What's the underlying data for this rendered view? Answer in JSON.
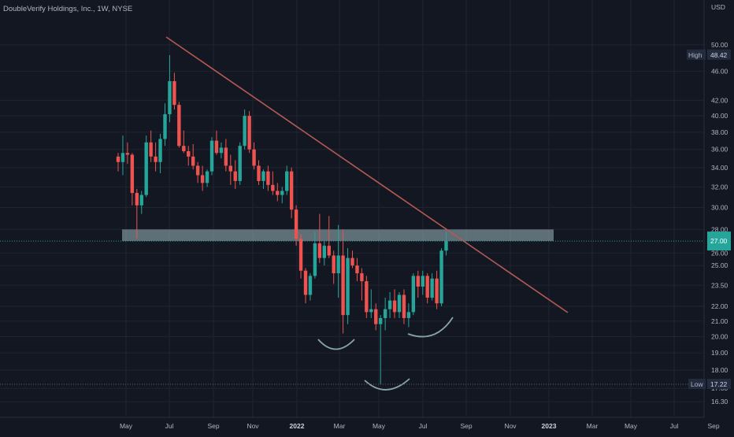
{
  "header": {
    "title": "DoubleVerify Holdings, Inc., 1W, NYSE"
  },
  "price_axis": {
    "currency": "USD"
  },
  "chart_data": {
    "type": "candlestick",
    "title": "DoubleVerify Holdings, Inc., 1W, NYSE",
    "ylabel": "USD",
    "ylog": true,
    "ylim": [
      15.6,
      54.5
    ],
    "yticks": [
      "16.30",
      "17.00",
      "18.00",
      "19.00",
      "20.00",
      "21.00",
      "22.00",
      "23.50",
      "25.00",
      "26.00",
      "28.00",
      "30.00",
      "32.00",
      "34.00",
      "36.00",
      "38.00",
      "40.00",
      "42.00",
      "46.00",
      "50.00"
    ],
    "x_ticks": [
      {
        "label": "May",
        "bold": false
      },
      {
        "label": "Jul",
        "bold": false
      },
      {
        "label": "Sep",
        "bold": false
      },
      {
        "label": "Nov",
        "bold": false
      },
      {
        "label": "2022",
        "bold": true
      },
      {
        "label": "Mar",
        "bold": false
      },
      {
        "label": "May",
        "bold": false
      },
      {
        "label": "Jul",
        "bold": false
      },
      {
        "label": "Sep",
        "bold": false
      },
      {
        "label": "Nov",
        "bold": false
      },
      {
        "label": "2023",
        "bold": true
      },
      {
        "label": "Mar",
        "bold": false
      },
      {
        "label": "May",
        "bold": false
      },
      {
        "label": "Jul",
        "bold": false
      },
      {
        "label": "Sep",
        "bold": false
      }
    ],
    "markers": {
      "high": {
        "label": "High",
        "value": "48.42"
      },
      "low": {
        "label": "Low",
        "value": "17.22"
      },
      "last": {
        "value": "27.00"
      }
    },
    "candles": [
      [
        35.2,
        35.6,
        33.6,
        34.6
      ],
      [
        34.6,
        37.6,
        33.2,
        35.6
      ],
      [
        35.6,
        36.8,
        34.4,
        35.4
      ],
      [
        35.4,
        35.6,
        30.2,
        31.4
      ],
      [
        31.4,
        31.8,
        27.2,
        30.2
      ],
      [
        30.2,
        31.6,
        29.4,
        31.2
      ],
      [
        31.2,
        37.6,
        31.0,
        36.8
      ],
      [
        36.8,
        38.2,
        34.6,
        35.2
      ],
      [
        35.2,
        36.8,
        33.6,
        34.6
      ],
      [
        34.6,
        37.8,
        33.4,
        37.2
      ],
      [
        37.2,
        41.6,
        36.4,
        40.2
      ],
      [
        40.2,
        48.4,
        39.2,
        44.6
      ],
      [
        44.6,
        45.8,
        40.8,
        41.4
      ],
      [
        41.4,
        41.8,
        36.2,
        36.4
      ],
      [
        36.4,
        38.2,
        35.6,
        35.8
      ],
      [
        35.8,
        36.4,
        34.2,
        35.2
      ],
      [
        35.2,
        36.6,
        33.8,
        34.2
      ],
      [
        34.2,
        34.6,
        32.4,
        33.2
      ],
      [
        33.2,
        34.2,
        31.6,
        32.4
      ],
      [
        32.4,
        33.8,
        32.0,
        33.6
      ],
      [
        33.6,
        37.4,
        33.2,
        37.0
      ],
      [
        37.0,
        38.2,
        35.4,
        35.6
      ],
      [
        35.6,
        36.8,
        35.0,
        36.2
      ],
      [
        36.2,
        37.2,
        33.6,
        34.2
      ],
      [
        34.2,
        35.4,
        32.2,
        33.6
      ],
      [
        33.6,
        34.8,
        31.8,
        32.6
      ],
      [
        32.6,
        36.8,
        32.2,
        36.4
      ],
      [
        36.4,
        40.8,
        36.0,
        40.0
      ],
      [
        40.0,
        40.6,
        35.6,
        36.0
      ],
      [
        36.0,
        36.8,
        33.8,
        34.2
      ],
      [
        34.2,
        34.8,
        32.2,
        32.6
      ],
      [
        32.6,
        33.8,
        31.8,
        33.6
      ],
      [
        33.6,
        34.2,
        31.6,
        32.2
      ],
      [
        32.2,
        33.6,
        31.2,
        31.6
      ],
      [
        31.6,
        32.4,
        30.6,
        31.2
      ],
      [
        31.2,
        32.0,
        30.4,
        31.6
      ],
      [
        31.6,
        34.2,
        31.2,
        33.6
      ],
      [
        33.6,
        34.0,
        29.0,
        29.8
      ],
      [
        29.8,
        30.2,
        26.6,
        27.2
      ],
      [
        27.2,
        27.6,
        24.0,
        24.6
      ],
      [
        24.6,
        24.8,
        22.2,
        22.8
      ],
      [
        22.8,
        24.4,
        22.4,
        24.2
      ],
      [
        24.2,
        27.8,
        24.0,
        26.8
      ],
      [
        26.8,
        29.4,
        25.2,
        25.6
      ],
      [
        25.6,
        27.0,
        25.0,
        26.6
      ],
      [
        26.6,
        29.2,
        25.6,
        25.8
      ],
      [
        25.8,
        26.2,
        23.6,
        24.4
      ],
      [
        24.4,
        28.4,
        22.6,
        25.8
      ],
      [
        25.8,
        28.0,
        20.2,
        21.4
      ],
      [
        21.4,
        26.4,
        20.8,
        25.6
      ],
      [
        25.6,
        26.2,
        24.8,
        25.0
      ],
      [
        25.0,
        25.6,
        23.8,
        24.4
      ],
      [
        24.4,
        24.8,
        22.4,
        23.8
      ],
      [
        23.8,
        24.2,
        21.2,
        21.6
      ],
      [
        21.6,
        23.2,
        21.2,
        21.8
      ],
      [
        21.8,
        22.2,
        20.4,
        20.8
      ],
      [
        20.8,
        21.4,
        17.2,
        21.2
      ],
      [
        21.2,
        22.6,
        20.4,
        21.8
      ],
      [
        21.8,
        23.0,
        21.2,
        22.4
      ],
      [
        22.4,
        23.2,
        21.2,
        21.6
      ],
      [
        21.6,
        23.0,
        21.2,
        22.8
      ],
      [
        22.8,
        23.2,
        20.8,
        21.2
      ],
      [
        21.2,
        22.2,
        20.6,
        21.6
      ],
      [
        21.6,
        24.4,
        21.4,
        24.2
      ],
      [
        24.2,
        24.6,
        22.6,
        23.4
      ],
      [
        23.4,
        24.6,
        22.8,
        24.2
      ],
      [
        24.2,
        24.4,
        22.2,
        22.6
      ],
      [
        22.6,
        24.4,
        22.4,
        24.0
      ],
      [
        24.0,
        24.6,
        21.8,
        22.2
      ],
      [
        22.2,
        26.4,
        22.0,
        26.2
      ],
      [
        26.2,
        27.8,
        25.8,
        27.0
      ]
    ],
    "colors": {
      "background": "#131722",
      "grid": "#1f2433",
      "up": "#26a69a",
      "down": "#ef5350",
      "trendline": "#b45a55",
      "zone": "#9fb8bd",
      "pattern_arcs": "#8aa3aa",
      "axis_text": "#b2b5be",
      "marker_bg": "#232b3e",
      "last_bg": "#26a69a"
    }
  }
}
